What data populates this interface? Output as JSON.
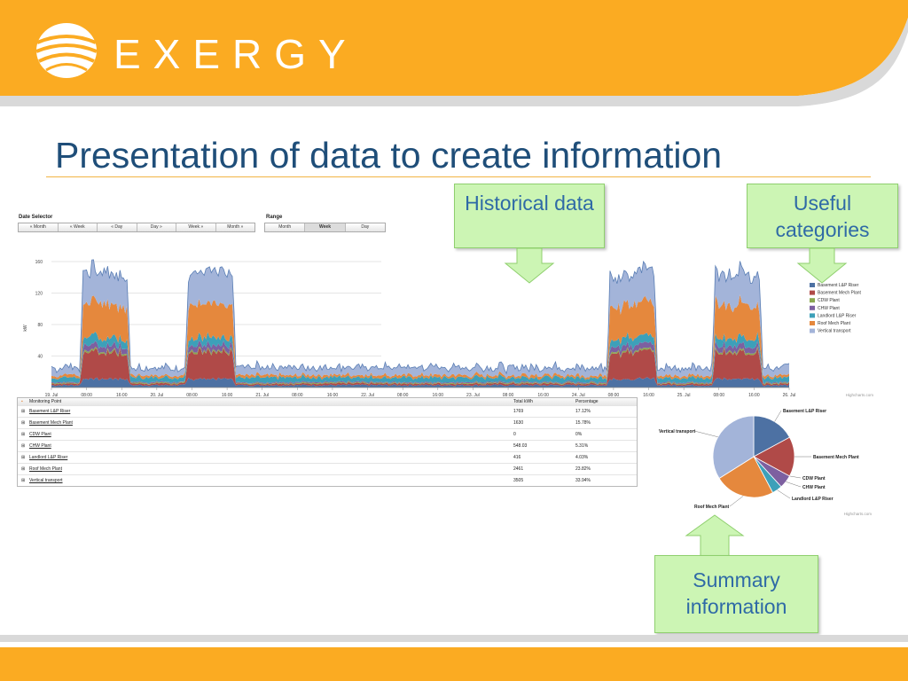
{
  "header": {
    "brand": "EXERGY",
    "colors": {
      "orange": "#fbab22",
      "title": "#1f4e79"
    }
  },
  "slide_title": "Presentation of data to create information",
  "date_selector": {
    "label": "Date Selector",
    "buttons": [
      "« Month",
      "« Week",
      "« Day",
      "Day »",
      "Week »",
      "Month »"
    ]
  },
  "range": {
    "label": "Range",
    "buttons": [
      "Month",
      "Week",
      "Day"
    ],
    "active": "Week"
  },
  "callouts": {
    "historical": "Historical data",
    "useful": "Useful categories",
    "summary": "Summary information"
  },
  "chart_data": [
    {
      "type": "area",
      "ylabel": "kW",
      "ylim": [
        0,
        160
      ],
      "yticks": [
        "40",
        "80",
        "120",
        "160"
      ],
      "x_labels": [
        "19. Jul",
        "08:00",
        "16:00",
        "20. Jul",
        "08:00",
        "16:00",
        "21. Jul",
        "08:00",
        "16:00",
        "22. Jul",
        "08:00",
        "16:00",
        "23. Jul",
        "08:00",
        "16:00",
        "24. Jul",
        "08:00",
        "16:00",
        "25. Jul",
        "08:00",
        "16:00",
        "26. Jul"
      ],
      "grid": true,
      "legend_position": "right",
      "credit": "Highcharts.com",
      "series": [
        {
          "name": "Basement L&P Riser",
          "color": "#4d71a3",
          "day_peak": 8,
          "night": 3
        },
        {
          "name": "Basement Mech Plant",
          "color": "#b04a48",
          "day_peak": 32,
          "night": 2
        },
        {
          "name": "CDW Plant",
          "color": "#8aa84f",
          "day_peak": 1,
          "night": 1
        },
        {
          "name": "CHW Plant",
          "color": "#7d60a0",
          "day_peak": 6,
          "night": 1
        },
        {
          "name": "Landlord L&P Riser",
          "color": "#3da0b9",
          "day_peak": 4,
          "night": 6
        },
        {
          "name": "Roof Mech Plant",
          "color": "#e5883d",
          "day_peak": 40,
          "night": 3
        },
        {
          "name": "Vertical transport",
          "color": "#a3b4d9",
          "day_peak": 30,
          "night": 10
        }
      ],
      "day_profile": [
        1,
        1,
        0,
        0,
        0,
        1,
        1,
        1,
        1,
        1
      ]
    },
    {
      "type": "pie",
      "credit": "Highcharts.com",
      "slices": [
        {
          "label": "Basement L&P Riser",
          "value": 17.12,
          "color": "#4d71a3"
        },
        {
          "label": "Basement Mech Plant",
          "value": 15.78,
          "color": "#b04a48"
        },
        {
          "label": "CDW Plant",
          "value": 0,
          "color": "#8aa84f"
        },
        {
          "label": "CHW Plant",
          "value": 5.31,
          "color": "#7d60a0"
        },
        {
          "label": "Landlord L&P Riser",
          "value": 4.03,
          "color": "#3da0b9"
        },
        {
          "label": "Roof Mech Plant",
          "value": 23.82,
          "color": "#e5883d"
        },
        {
          "label": "Vertical transport",
          "value": 33.94,
          "color": "#a3b4d9"
        }
      ]
    }
  ],
  "table": {
    "headers": [
      "Monitoring Point",
      "Total kWh",
      "Percentage"
    ],
    "rows": [
      {
        "name": "Basement L&P Riser",
        "kwh": "1769",
        "pct": "17.12%"
      },
      {
        "name": "Basement Mech Plant",
        "kwh": "1630",
        "pct": "15.78%"
      },
      {
        "name": "CDW Plant",
        "kwh": "0",
        "pct": "0%"
      },
      {
        "name": "CHW Plant",
        "kwh": "548.03",
        "pct": "5.31%"
      },
      {
        "name": "Landlord L&P Riser",
        "kwh": "416",
        "pct": "4.03%"
      },
      {
        "name": "Roof Mech Plant",
        "kwh": "2461",
        "pct": "23.82%"
      },
      {
        "name": "Vertical transport",
        "kwh": "3505",
        "pct": "33.94%"
      }
    ]
  }
}
